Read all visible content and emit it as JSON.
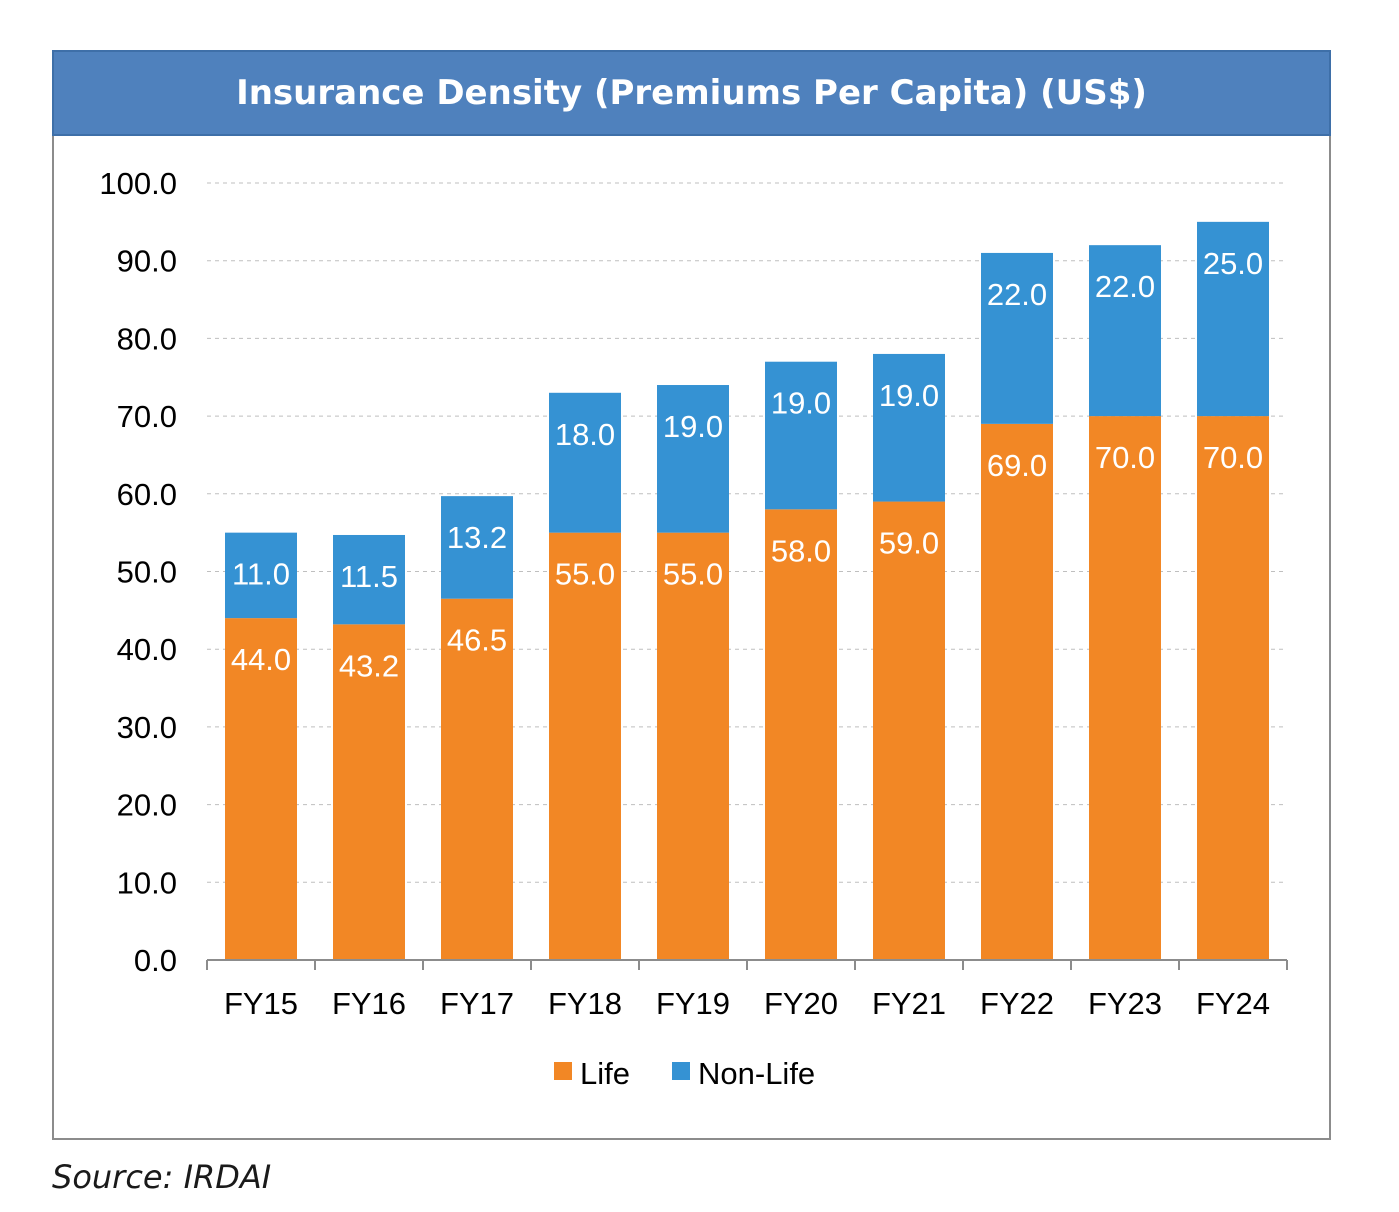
{
  "chart_data": {
    "type": "bar",
    "stacked": true,
    "title": "Insurance Density (Premiums Per Capita) (US$)",
    "categories": [
      "FY15",
      "FY16",
      "FY17",
      "FY18",
      "FY19",
      "FY20",
      "FY21",
      "FY22",
      "FY23",
      "FY24"
    ],
    "series": [
      {
        "name": "Life",
        "color": "#f28725",
        "values": [
          44.0,
          43.2,
          46.5,
          55.0,
          55.0,
          58.0,
          59.0,
          69.0,
          70.0,
          70.0
        ],
        "labels": [
          "44.0",
          "43.2",
          "46.5",
          "55.0",
          "55.0",
          "58.0",
          "59.0",
          "69.0",
          "70.0",
          "70.0"
        ]
      },
      {
        "name": "Non-Life",
        "color": "#3592d3",
        "values": [
          11.0,
          11.5,
          13.2,
          18.0,
          19.0,
          19.0,
          19.0,
          22.0,
          22.0,
          25.0
        ],
        "labels": [
          "11.0",
          "11.5",
          "13.2",
          "18.0",
          "19.0",
          "19.0",
          "19.0",
          "22.0",
          "22.0",
          "25.0"
        ]
      }
    ],
    "ylim": [
      0,
      100
    ],
    "yticks": [
      "0.0",
      "10.0",
      "20.0",
      "30.0",
      "40.0",
      "50.0",
      "60.0",
      "70.0",
      "80.0",
      "90.0",
      "100.0"
    ],
    "grid": true,
    "legend": "bottom-center"
  },
  "source": "Source: IRDAI"
}
